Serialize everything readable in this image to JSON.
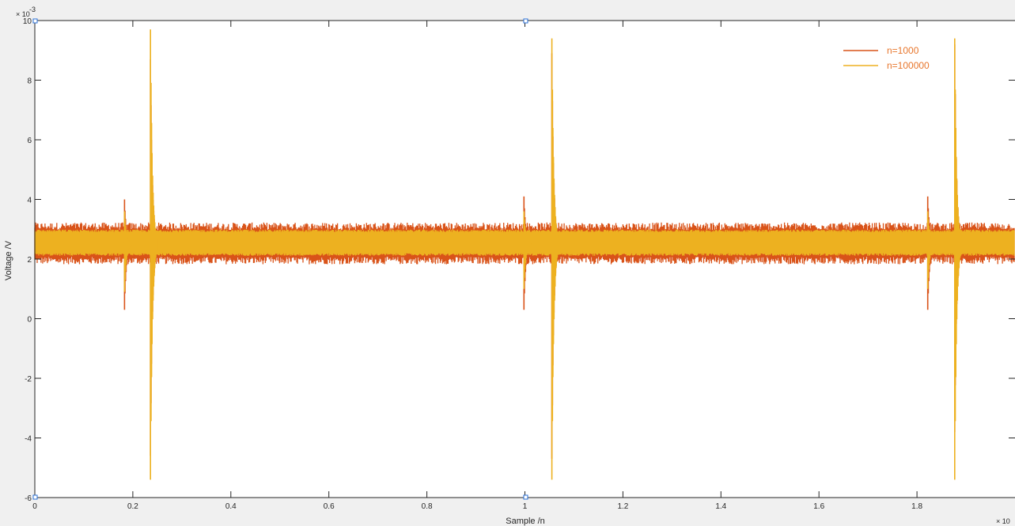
{
  "chart_data": {
    "type": "line",
    "title": "",
    "xlabel": "Sample /n",
    "ylabel": "Voltage /V",
    "x_exponent_label": "× 10",
    "y_exponent_label": "× 10",
    "y_exponent_power": "-3",
    "xlim": [
      0,
      2.0
    ],
    "ylim": [
      -6,
      10
    ],
    "x_ticks": [
      0,
      0.2,
      0.4,
      0.6,
      0.8,
      1,
      1.2,
      1.4,
      1.6,
      1.8
    ],
    "x_tick_labels": [
      "0",
      "0.2",
      "0.4",
      "0.6",
      "0.8",
      "1",
      "1.2",
      "1.4",
      "1.6",
      "1.8"
    ],
    "y_ticks": [
      -6,
      -4,
      -2,
      0,
      2,
      4,
      6,
      8,
      10
    ],
    "y_tick_labels": [
      "-6",
      "-4",
      "-2",
      "0",
      "2",
      "4",
      "6",
      "8",
      "10"
    ],
    "grid": false,
    "legend_position": "top-right",
    "baseline": 2.5,
    "series": [
      {
        "name": "n=1000",
        "color": "#d95319",
        "band": [
          1.95,
          3.1
        ],
        "spikes": [
          {
            "x": 0.183,
            "min": 0.3,
            "max": 4.0
          },
          {
            "x": 0.236,
            "min": -4.6,
            "max": 8.7
          },
          {
            "x": 0.998,
            "min": 0.3,
            "max": 4.1
          },
          {
            "x": 1.055,
            "min": -4.7,
            "max": 8.9
          },
          {
            "x": 1.822,
            "min": 0.3,
            "max": 4.1
          },
          {
            "x": 1.877,
            "min": -3.8,
            "max": 9.2
          }
        ]
      },
      {
        "name": "n=100000",
        "color": "#edb120",
        "band": [
          2.15,
          2.95
        ],
        "spikes": [
          {
            "x": 0.183,
            "min": 0.9,
            "max": 3.6
          },
          {
            "x": 0.236,
            "min": -5.4,
            "max": 9.7
          },
          {
            "x": 0.998,
            "min": 1.0,
            "max": 3.6
          },
          {
            "x": 1.055,
            "min": -5.4,
            "max": 9.4
          },
          {
            "x": 1.822,
            "min": 1.0,
            "max": 3.6
          },
          {
            "x": 1.877,
            "min": -5.4,
            "max": 9.4
          }
        ]
      }
    ]
  }
}
